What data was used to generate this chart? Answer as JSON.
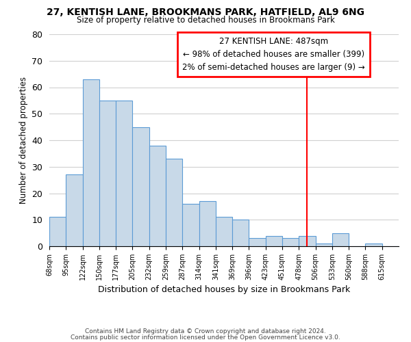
{
  "title": "27, KENTISH LANE, BROOKMANS PARK, HATFIELD, AL9 6NG",
  "subtitle": "Size of property relative to detached houses in Brookmans Park",
  "xlabel": "Distribution of detached houses by size in Brookmans Park",
  "ylabel": "Number of detached properties",
  "bar_labels": [
    "68sqm",
    "95sqm",
    "122sqm",
    "150sqm",
    "177sqm",
    "205sqm",
    "232sqm",
    "259sqm",
    "287sqm",
    "314sqm",
    "341sqm",
    "369sqm",
    "396sqm",
    "423sqm",
    "451sqm",
    "478sqm",
    "506sqm",
    "533sqm",
    "560sqm",
    "588sqm",
    "615sqm"
  ],
  "bar_values": [
    11,
    27,
    63,
    55,
    55,
    45,
    38,
    33,
    16,
    17,
    11,
    10,
    3,
    4,
    3,
    4,
    1,
    5,
    0,
    1,
    0
  ],
  "bar_color": "#c8d9e8",
  "bar_edge_color": "#5b9bd5",
  "ylim": [
    0,
    80
  ],
  "yticks": [
    0,
    10,
    20,
    30,
    40,
    50,
    60,
    70,
    80
  ],
  "vline_color": "red",
  "annotation_title": "27 KENTISH LANE: 487sqm",
  "annotation_line1": "← 98% of detached houses are smaller (399)",
  "annotation_line2": "2% of semi-detached houses are larger (9) →",
  "annotation_box_color": "#ffffff",
  "annotation_box_edge": "red",
  "footer1": "Contains HM Land Registry data © Crown copyright and database right 2024.",
  "footer2": "Contains public sector information licensed under the Open Government Licence v3.0.",
  "background_color": "#ffffff",
  "grid_color": "#d0d0d0"
}
